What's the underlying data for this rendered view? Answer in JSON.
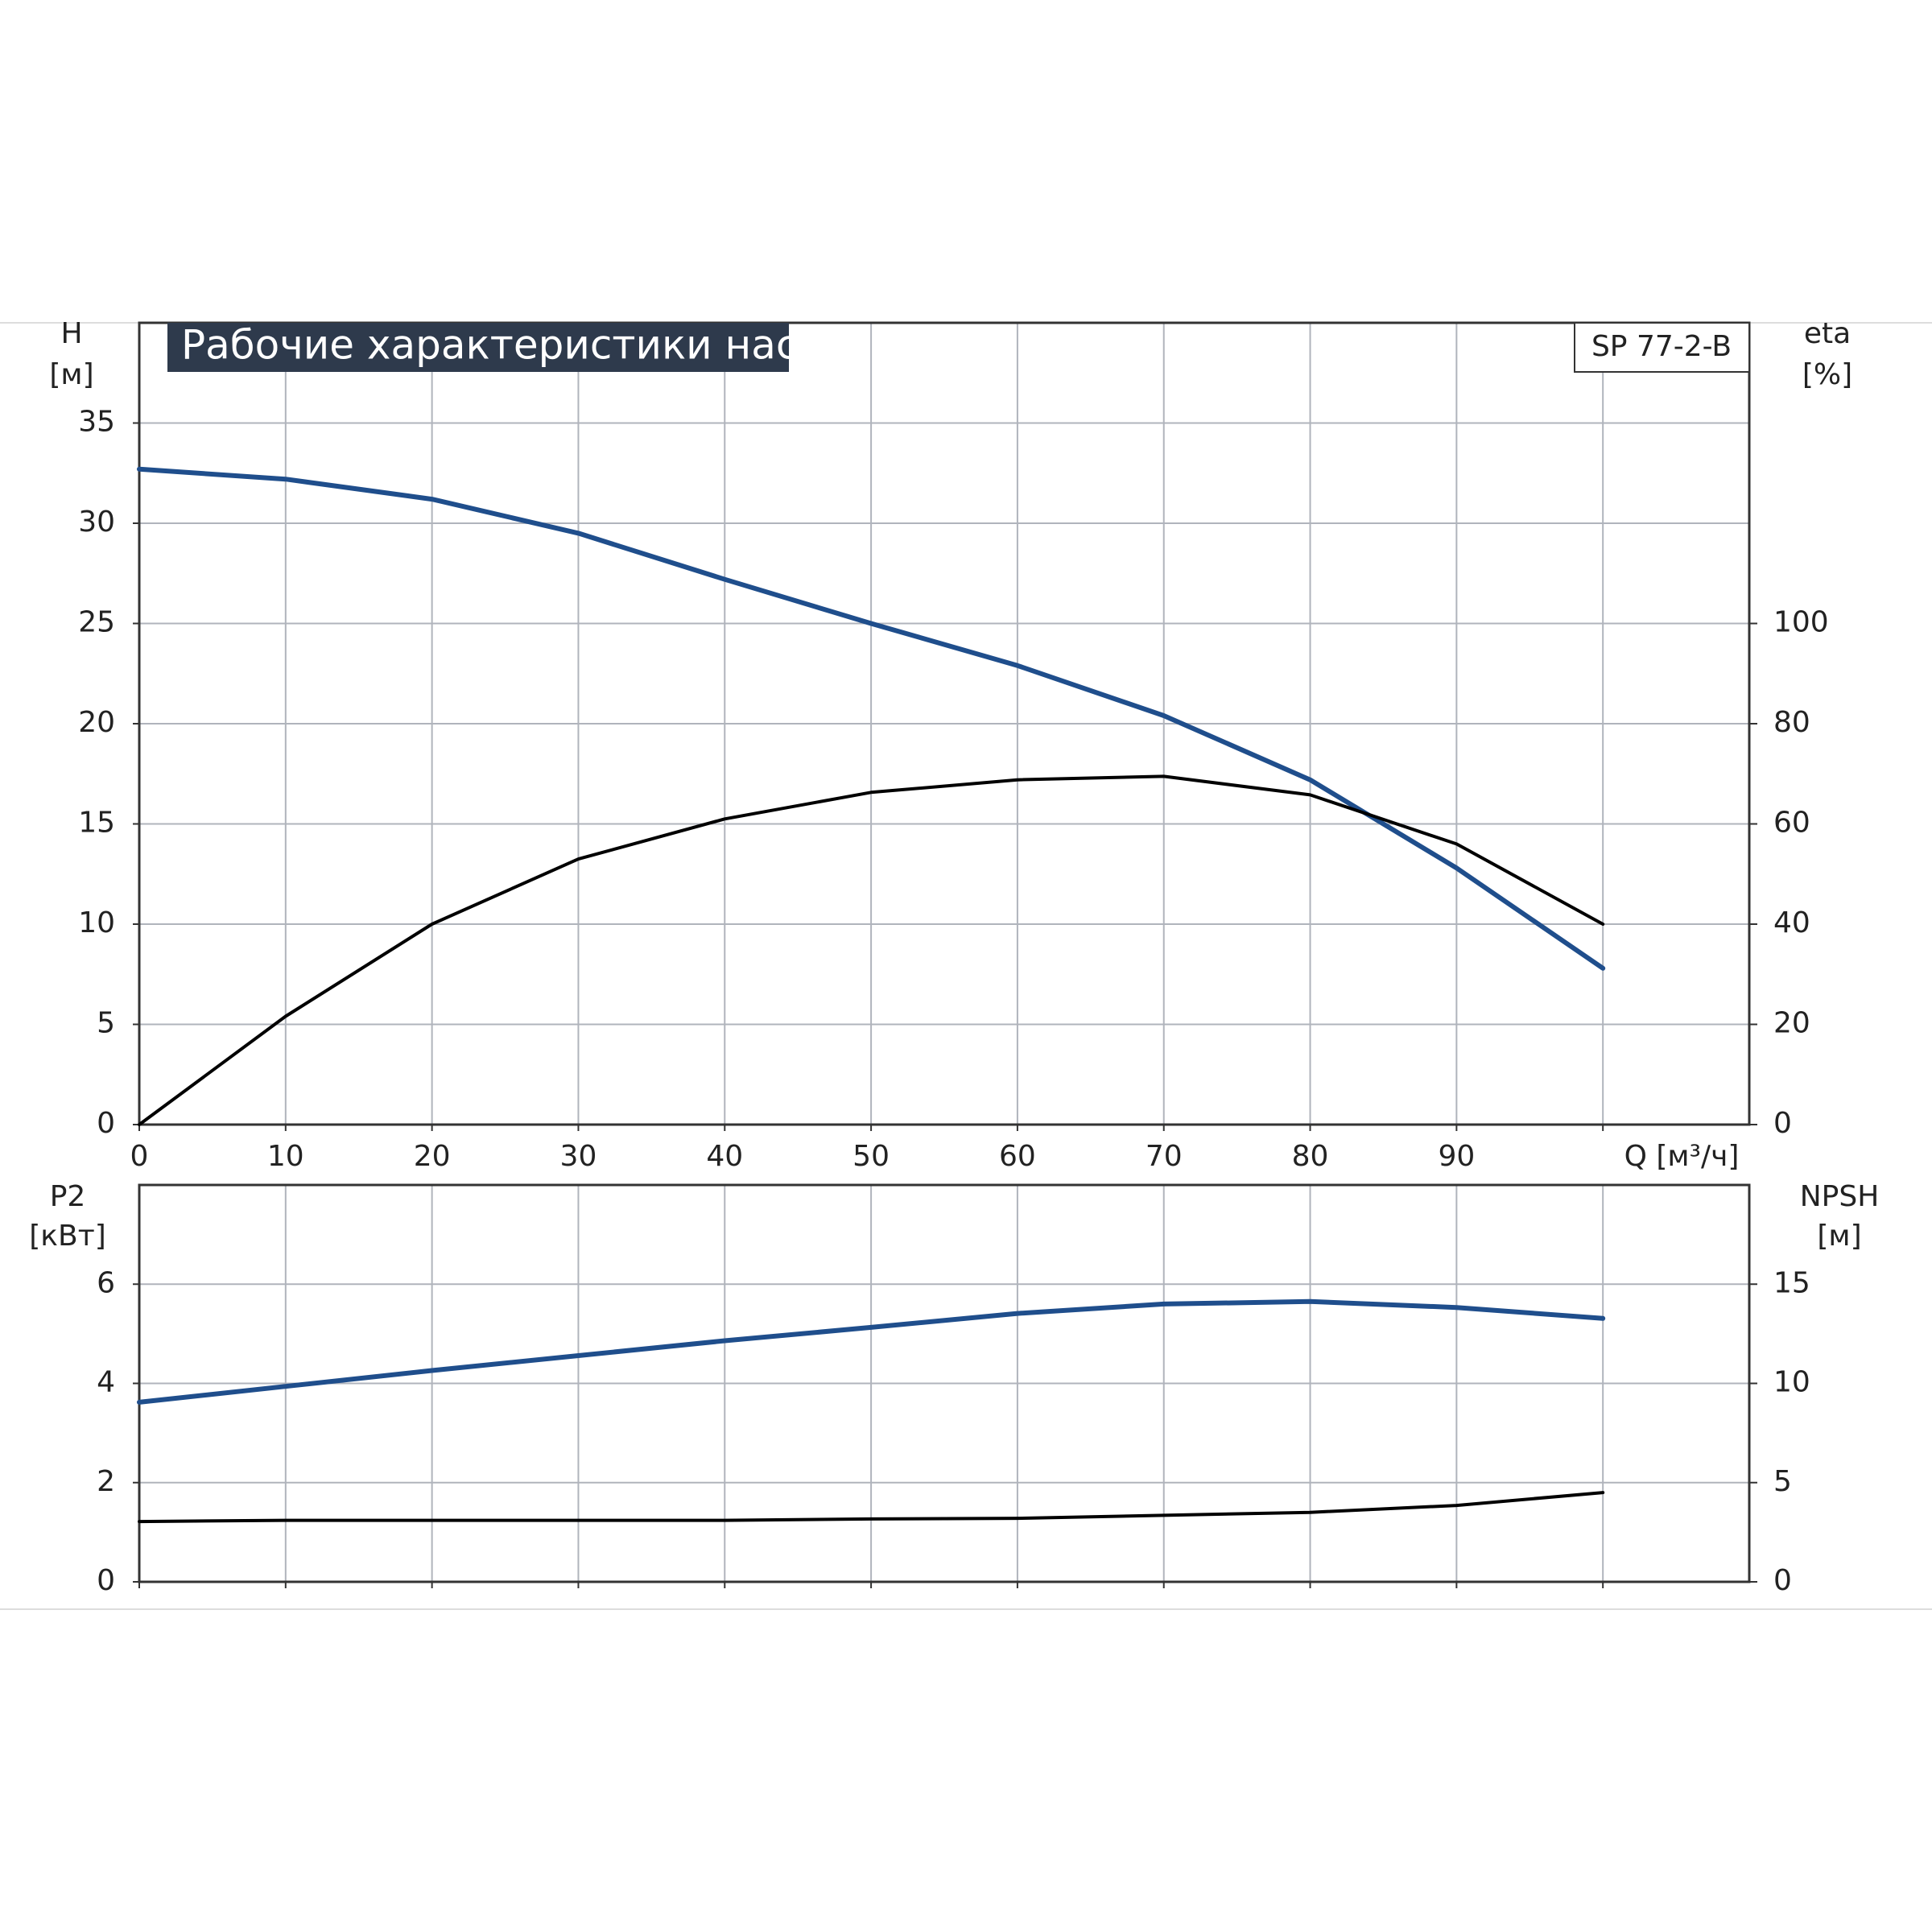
{
  "chart_data": [
    {
      "type": "line",
      "title": "Рабочие характеристики насоса",
      "model": "SP 77-2-B",
      "xlabel": "Q [м³/ч]",
      "ylabel": [
        "H",
        "[м]"
      ],
      "y2label": [
        "eta",
        "[%]"
      ],
      "x": [
        0,
        10,
        20,
        30,
        40,
        50,
        60,
        70,
        80,
        90,
        100
      ],
      "xlim": [
        0,
        110
      ],
      "xticks": [
        0,
        10,
        20,
        30,
        40,
        50,
        60,
        70,
        80,
        90,
        {
          "value": 100,
          "label": null
        }
      ],
      "ylim": [
        0,
        40
      ],
      "yticks": [
        0,
        5,
        10,
        15,
        20,
        25,
        30,
        35
      ],
      "y2lim": [
        0,
        160
      ],
      "y2ticks": [
        0,
        20,
        40,
        60,
        80,
        100
      ],
      "grid": true,
      "series": [
        {
          "color": "#1f4e8c",
          "values": [
            32.7,
            32.2,
            31.2,
            29.5,
            27.2,
            25.0,
            22.9,
            20.4,
            17.2,
            12.8,
            7.8
          ]
        },
        {
          "color": "#000000",
          "axis": "y2",
          "values": [
            0,
            21.6,
            40,
            53,
            61,
            66.3,
            68.8,
            69.5,
            65.8,
            56,
            40
          ]
        }
      ]
    },
    {
      "type": "line",
      "ylabel": [
        "P2",
        "[кВт]"
      ],
      "y2label": [
        "NPSH",
        "[м]"
      ],
      "x": [
        0,
        10,
        20,
        30,
        40,
        50,
        60,
        70,
        80,
        90,
        100
      ],
      "xlim": [
        0,
        110
      ],
      "ylim": [
        0,
        8
      ],
      "yticks": [
        0,
        2,
        4,
        6
      ],
      "y2lim": [
        0,
        20
      ],
      "y2ticks": [
        0,
        5,
        10,
        15
      ],
      "grid": true,
      "series": [
        {
          "color": "#1f4e8c",
          "values": [
            3.62,
            3.94,
            4.26,
            4.56,
            4.86,
            5.13,
            5.41,
            5.6,
            5.65,
            5.53,
            5.31
          ]
        },
        {
          "color": "#000000",
          "axis": "y2",
          "values": [
            3.04,
            3.1,
            3.1,
            3.1,
            3.1,
            3.17,
            3.2,
            3.35,
            3.5,
            3.85,
            4.5
          ]
        }
      ]
    }
  ]
}
